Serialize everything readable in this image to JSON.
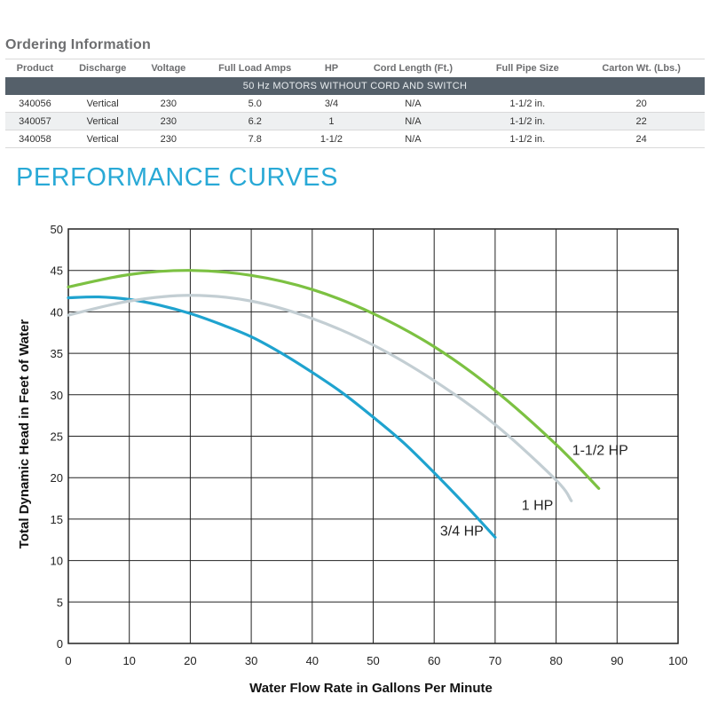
{
  "ordering": {
    "title": "Ordering Information",
    "headers": [
      "Product",
      "Discharge",
      "Voltage",
      "Full Load Amps",
      "HP",
      "Cord Length (Ft.)",
      "Full Pipe Size",
      "Carton Wt. (Lbs.)"
    ],
    "band": "50 Hz MOTORS WITHOUT CORD AND SWITCH",
    "rows": [
      [
        "340056",
        "Vertical",
        "230",
        "5.0",
        "3/4",
        "N/A",
        "1-1/2 in.",
        "20"
      ],
      [
        "340057",
        "Vertical",
        "230",
        "6.2",
        "1",
        "N/A",
        "1-1/2 in.",
        "22"
      ],
      [
        "340058",
        "Vertical",
        "230",
        "7.8",
        "1-1/2",
        "N/A",
        "1-1/2 in.",
        "24"
      ]
    ]
  },
  "performance_title": "PERFORMANCE CURVES",
  "chart_data": {
    "type": "line",
    "title": "",
    "xlabel": "Water Flow Rate in Gallons Per Minute",
    "ylabel": "Total Dynamic Head in Feet of Water",
    "xlim": [
      0,
      100
    ],
    "ylim": [
      0,
      50
    ],
    "xticks": [
      0,
      10,
      20,
      30,
      40,
      50,
      60,
      70,
      80,
      90,
      100
    ],
    "yticks": [
      0,
      5,
      10,
      15,
      20,
      25,
      30,
      35,
      40,
      45,
      50
    ],
    "grid": true,
    "series": [
      {
        "name": "3/4 HP",
        "color": "#1fa3cf",
        "x": [
          0,
          5,
          10,
          15,
          20,
          25,
          30,
          35,
          40,
          45,
          50,
          55,
          60,
          65,
          70
        ],
        "y": [
          41.7,
          41.8,
          41.5,
          40.8,
          39.8,
          38.5,
          37.0,
          35.0,
          32.7,
          30.2,
          27.3,
          24.2,
          20.6,
          16.8,
          12.8
        ]
      },
      {
        "name": "1 HP",
        "color": "#c3ced3",
        "x": [
          0,
          10,
          20,
          30,
          40,
          50,
          60,
          70,
          80,
          82.5
        ],
        "y": [
          39.6,
          41.3,
          42.0,
          41.3,
          39.2,
          36.0,
          31.7,
          26.4,
          19.7,
          17.2
        ]
      },
      {
        "name": "1-1/2 HP",
        "color": "#7cc142",
        "x": [
          0,
          10,
          20,
          30,
          40,
          50,
          60,
          70,
          80,
          87
        ],
        "y": [
          43.0,
          44.5,
          45.0,
          44.4,
          42.7,
          39.8,
          35.8,
          30.5,
          24.0,
          18.7
        ]
      }
    ]
  }
}
